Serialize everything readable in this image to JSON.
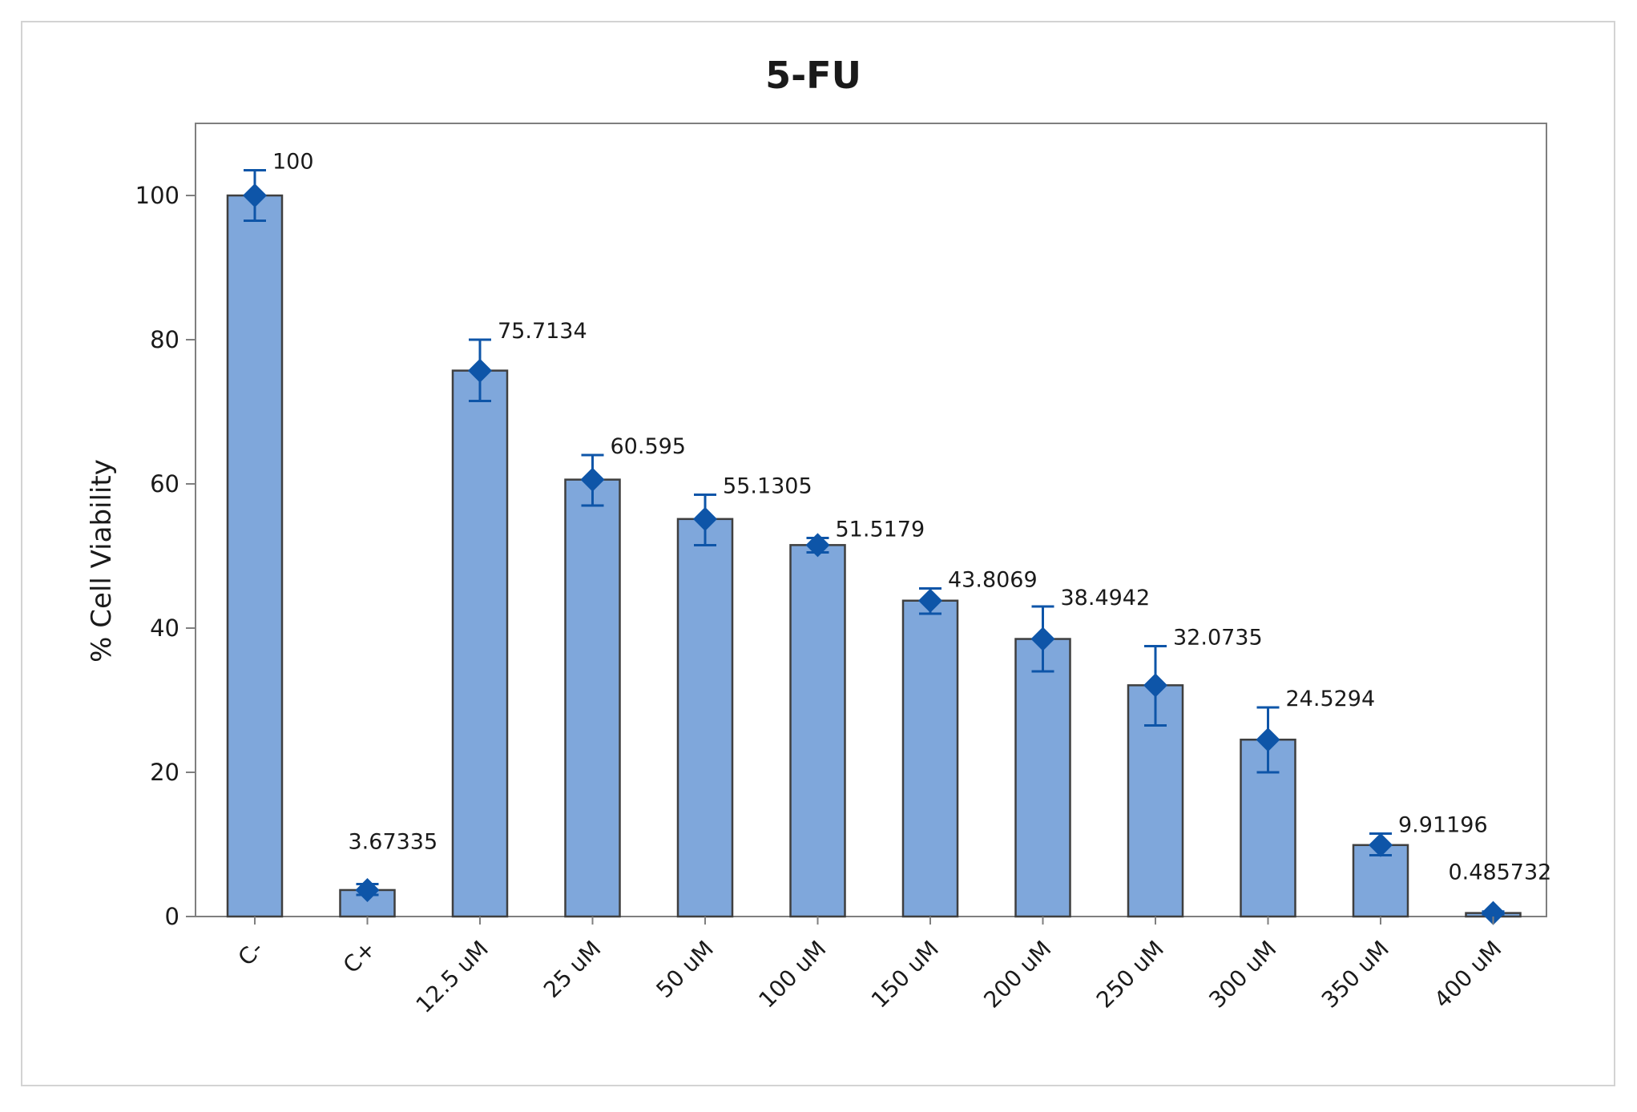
{
  "chart_data": {
    "type": "bar",
    "title": "5-FU",
    "xlabel": "",
    "ylabel": "% Cell Viability",
    "ylim": [
      0,
      110
    ],
    "yticks": [
      "0",
      "20",
      "40",
      "60",
      "80",
      "100"
    ],
    "categories": [
      "C-",
      "C+",
      "12.5 uM",
      "25 uM",
      "50 uM",
      "100 uM",
      "150 uM",
      "200 uM",
      "250 uM",
      "300 uM",
      "350 uM",
      "400 uM"
    ],
    "values": [
      100,
      3.67335,
      75.7134,
      60.595,
      55.1305,
      51.5179,
      43.8069,
      38.4942,
      32.0735,
      24.5294,
      9.91196,
      0.485732
    ],
    "value_labels": [
      "100",
      "3.67335",
      "75.7134",
      "60.595",
      "55.1305",
      "51.5179",
      "43.8069",
      "38.4942",
      "32.0735",
      "24.5294",
      "9.91196",
      "0.485732"
    ],
    "error": [
      {
        "low": 96.5,
        "high": 103.5
      },
      {
        "low": 3.0,
        "high": 4.5
      },
      {
        "low": 71.5,
        "high": 80.0
      },
      {
        "low": 57.0,
        "high": 64.0
      },
      {
        "low": 51.5,
        "high": 58.5
      },
      {
        "low": 50.5,
        "high": 52.5
      },
      {
        "low": 42.0,
        "high": 45.5
      },
      {
        "low": 34.0,
        "high": 43.0
      },
      {
        "low": 26.5,
        "high": 37.5
      },
      {
        "low": 20.0,
        "high": 29.0
      },
      {
        "low": 8.5,
        "high": 11.5
      },
      {
        "low": 0.3,
        "high": 0.7
      }
    ],
    "grid": false,
    "legend": "none",
    "colors": {
      "bar_fill": "#7fa7db",
      "bar_stroke": "#3f3f3f",
      "marker": "#0e55a8",
      "axis": "#7f7f7f"
    }
  }
}
